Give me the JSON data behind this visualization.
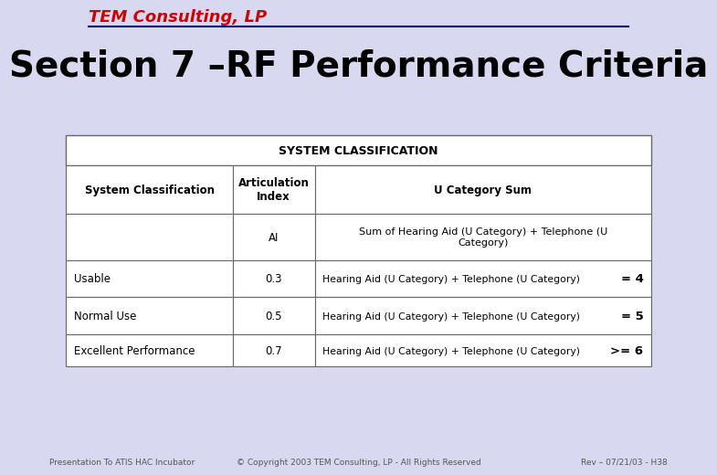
{
  "bg_color": "#d8d8f0",
  "title": "Section 7 –RF Performance Criteria",
  "title_fontsize": 28,
  "title_color": "#000000",
  "logo_text": "TEM Consulting, LP",
  "logo_color": "#cc0000",
  "logo_fontsize": 13,
  "line_color": "#00008b",
  "footer_left": "Presentation To ATIS HAC Incubator",
  "footer_center": "© Copyright 2003 TEM Consulting, LP - All Rights Reserved",
  "footer_right": "Rev – 07/21/03 - H38",
  "footer_fontsize": 6.5,
  "footer_color": "#555555",
  "table_header_main": "SYSTEM CLASSIFICATION",
  "table_col1_header": "System Classification",
  "table_col2_header": "Articulation\nIndex",
  "table_col3_header": "U Category Sum",
  "table_col2_subheader": "AI",
  "table_col3_subheader": "Sum of Hearing Aid (U Category) + Telephone (U\nCategory)",
  "table_rows": [
    [
      "Usable",
      "0.3",
      "Hearing Aid (U Category) + Telephone (U Category)",
      "= 4"
    ],
    [
      "Normal Use",
      "0.5",
      "Hearing Aid (U Category) + Telephone (U Category)",
      "= 5"
    ],
    [
      "Excellent Performance",
      "0.7",
      "Hearing Aid (U Category) + Telephone (U Category)",
      ">= 6"
    ]
  ],
  "table_border_color": "#666666",
  "table_header_fontsize": 8.5,
  "table_body_fontsize": 8.5
}
